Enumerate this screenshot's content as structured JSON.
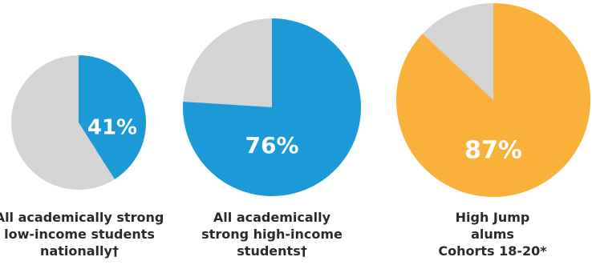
{
  "chart_data": {
    "type": "pie",
    "colors": {
      "background_slice": "#d4d4d4",
      "blue": "#1b9ad7",
      "orange": "#f9b13a",
      "label_text": "#ffffff",
      "caption_text": "#2a2a2a"
    },
    "pies": [
      {
        "value": 41,
        "label": "41%",
        "color": "#1b9ad7",
        "caption": [
          "All academically strong",
          "low-income students",
          "nationally†"
        ]
      },
      {
        "value": 76,
        "label": "76%",
        "color": "#1b9ad7",
        "caption": [
          "All academically",
          "strong high-income",
          "students†"
        ]
      },
      {
        "value": 87,
        "label": "87%",
        "color": "#f9b13a",
        "caption": [
          "High Jump",
          "alums",
          "Cohorts 18-20*"
        ]
      }
    ]
  }
}
